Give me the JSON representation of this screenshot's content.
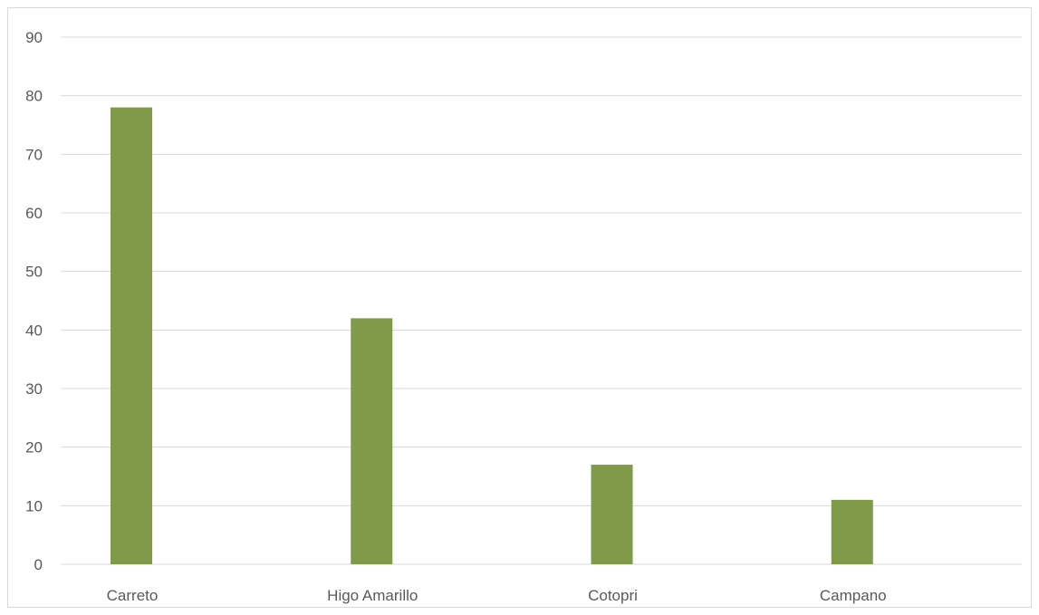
{
  "chart_data": {
    "type": "bar",
    "categories": [
      "Carreto",
      "Higo Amarillo",
      "Cotopri",
      "Campano"
    ],
    "values": [
      78,
      42,
      17,
      11
    ],
    "title": "",
    "xlabel": "",
    "ylabel": "",
    "ylim": [
      0,
      90
    ],
    "yticks": [
      0,
      10,
      20,
      30,
      40,
      50,
      60,
      70,
      80,
      90
    ],
    "grid": true,
    "legend": "none",
    "bar_color": "#7f9a48",
    "gridline_color": "#d9d9d9"
  }
}
